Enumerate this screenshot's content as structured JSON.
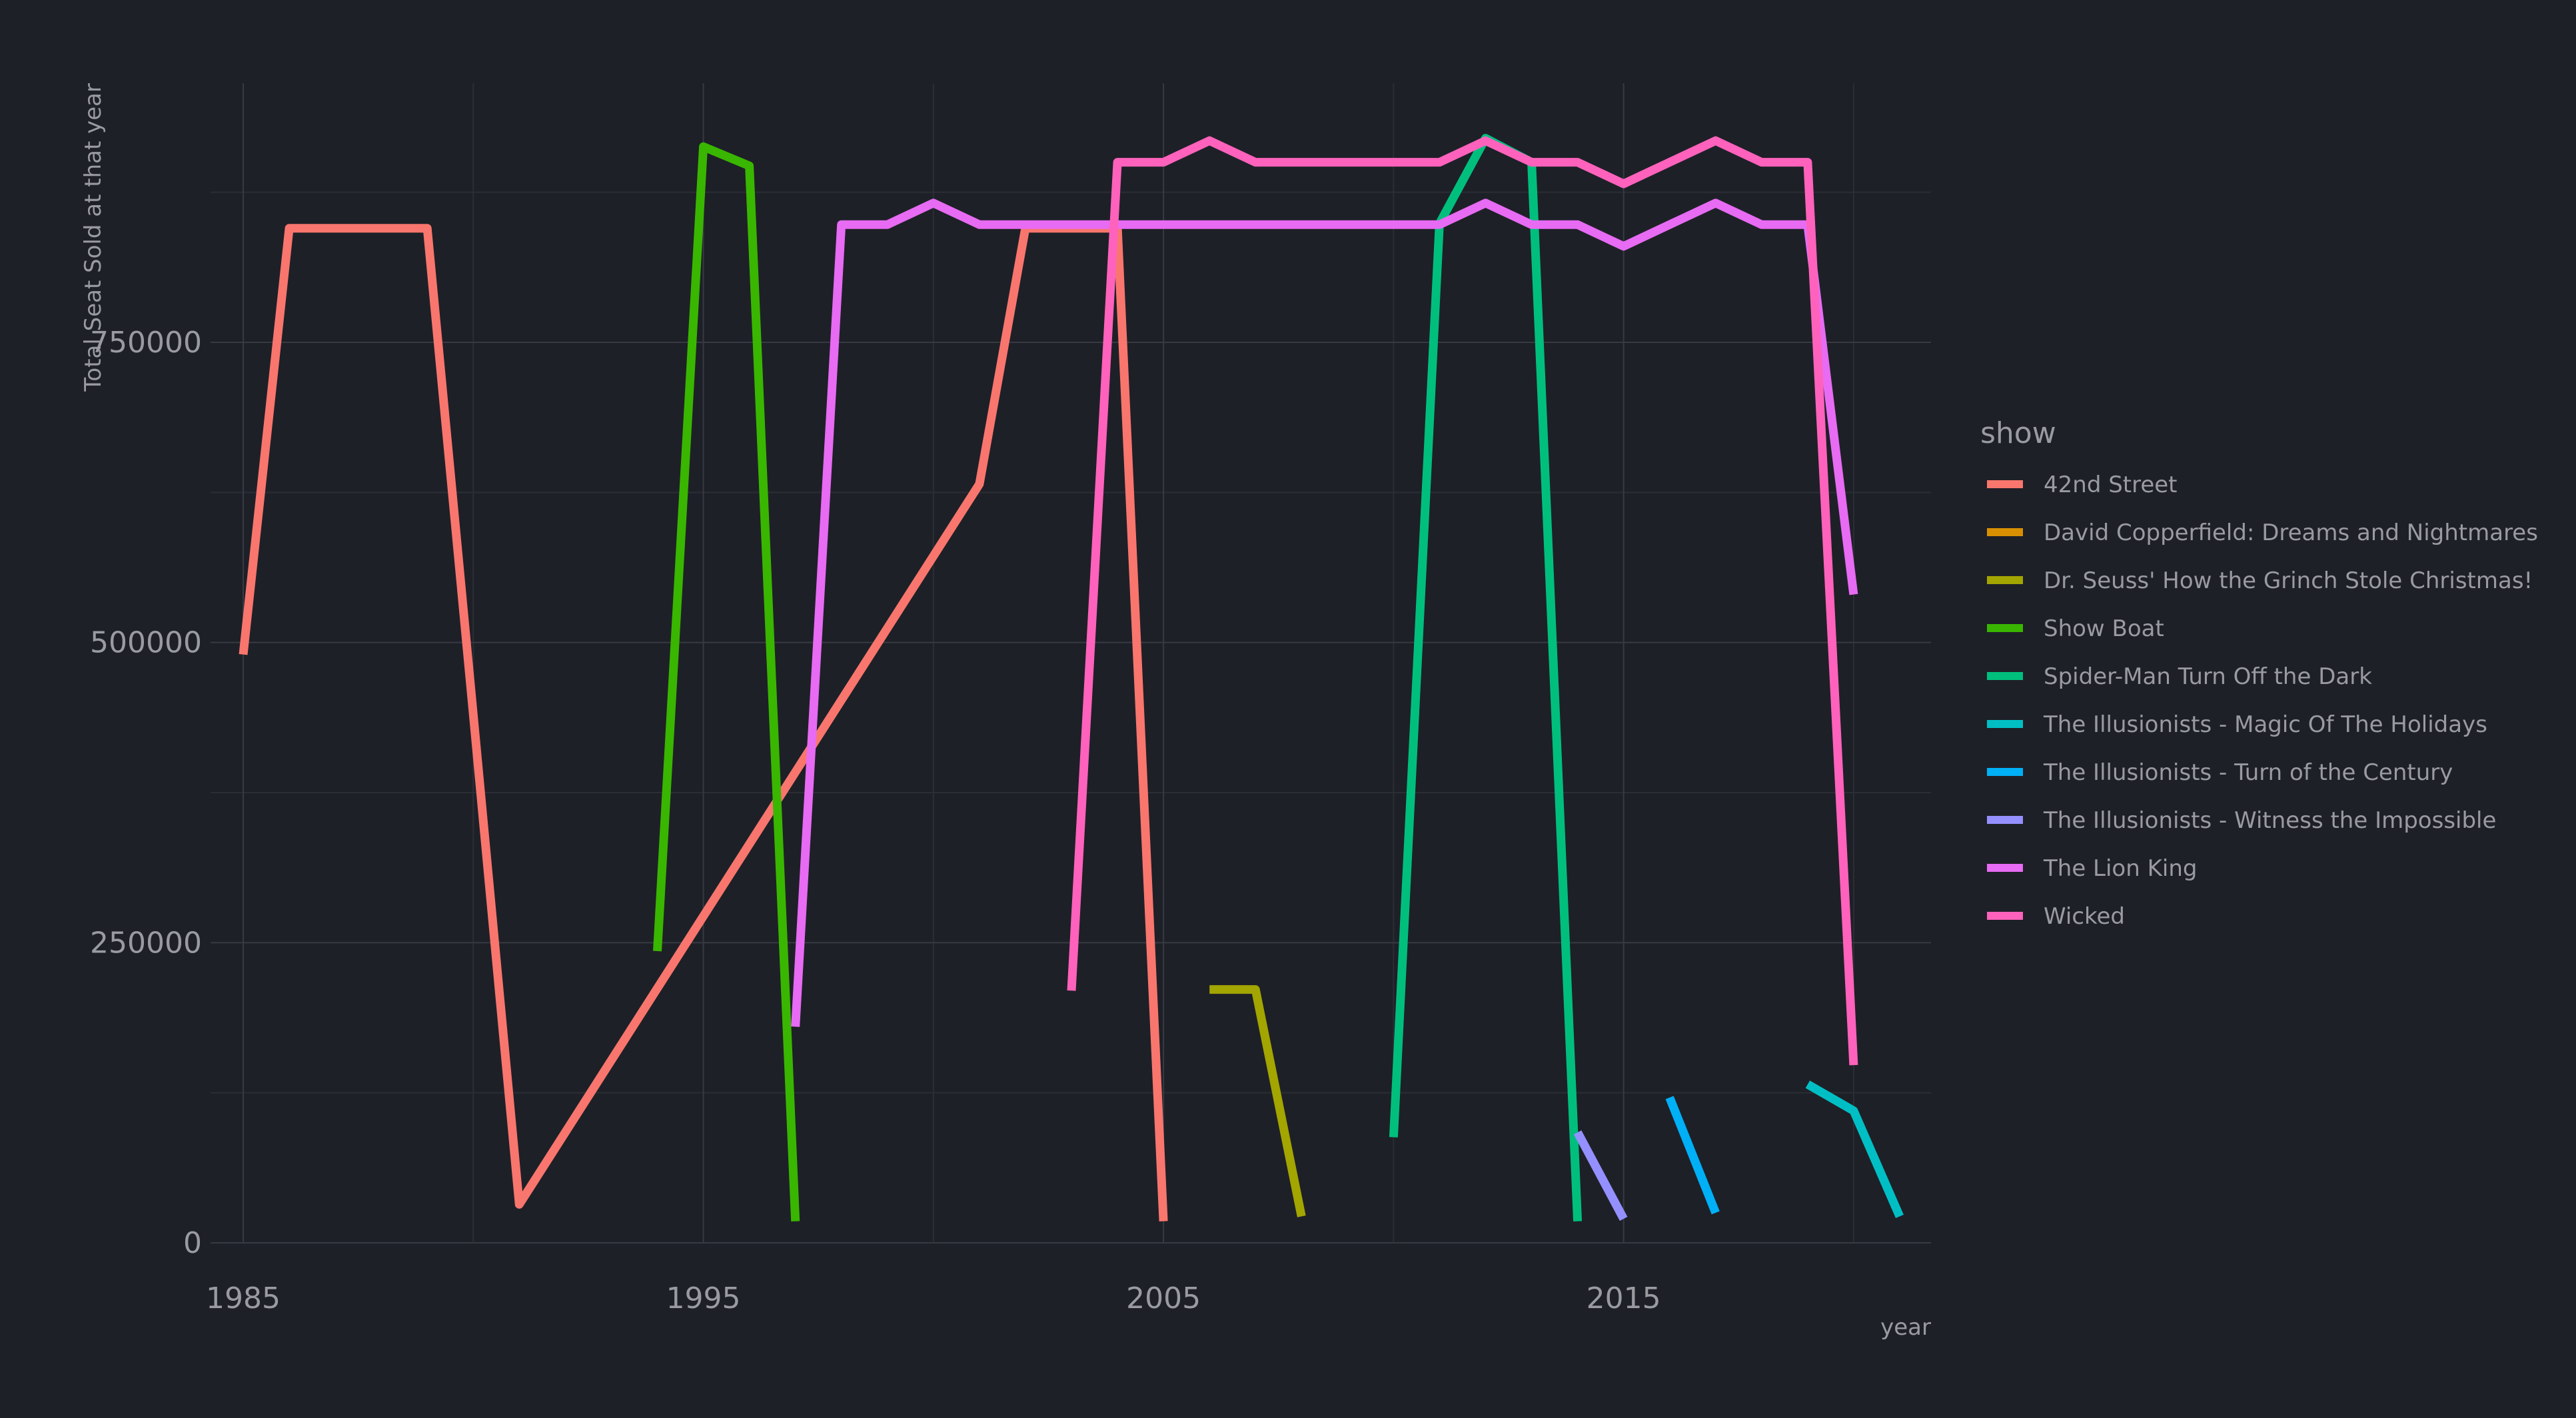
{
  "chart_data": {
    "type": "line",
    "title": "",
    "xlabel": "year",
    "ylabel": "Total Seat Sold at that year",
    "xlim": [
      1985,
      2021
    ],
    "ylim": [
      0,
      925000
    ],
    "x_ticks": [
      1985,
      1995,
      2005,
      2015
    ],
    "y_ticks": [
      0,
      250000,
      500000,
      750000
    ],
    "grid": true,
    "legend": {
      "title": "show",
      "position": "right"
    },
    "series": [
      {
        "name": "42nd Street",
        "color": "#f8766d",
        "points": [
          [
            1985,
            490000
          ],
          [
            1986,
            845000
          ],
          [
            1987,
            845000
          ],
          [
            1988,
            845000
          ],
          [
            1989,
            845000
          ],
          [
            1990,
            440000
          ],
          [
            1991,
            32000
          ],
          [
            2001,
            632000
          ],
          [
            2002,
            845000
          ],
          [
            2003,
            845000
          ],
          [
            2004,
            845000
          ],
          [
            2005,
            18000
          ]
        ]
      },
      {
        "name": "David Copperfield: Dreams and Nightmares",
        "color": "#d89000",
        "points": []
      },
      {
        "name": "Dr. Seuss' How the Grinch Stole Christmas!",
        "color": "#a3a500",
        "points": [
          [
            2006,
            211000
          ],
          [
            2007,
            211000
          ],
          [
            2008,
            22000
          ]
        ]
      },
      {
        "name": "Show Boat",
        "color": "#39b600",
        "points": [
          [
            1994,
            243000
          ],
          [
            1995,
            913000
          ],
          [
            1996,
            897000
          ],
          [
            1997,
            18000
          ]
        ]
      },
      {
        "name": "Spider-Man Turn Off the Dark",
        "color": "#00bf7d",
        "points": [
          [
            2010,
            88000
          ],
          [
            2011,
            849000
          ],
          [
            2012,
            920000
          ],
          [
            2013,
            900000
          ],
          [
            2014,
            18000
          ]
        ]
      },
      {
        "name": "The Illusionists - Magic Of The Holidays",
        "color": "#00bfc4",
        "points": [
          [
            2019,
            132000
          ],
          [
            2020,
            110000
          ],
          [
            2021,
            22000
          ]
        ]
      },
      {
        "name": "The Illusionists - Turn of the Century",
        "color": "#00b0f6",
        "points": [
          [
            2016,
            121000
          ],
          [
            2017,
            25000
          ]
        ]
      },
      {
        "name": "The Illusionists - Witness the Impossible",
        "color": "#9590ff",
        "points": [
          [
            2014,
            92000
          ],
          [
            2015,
            20000
          ]
        ]
      },
      {
        "name": "The Lion King",
        "color": "#e76bf3",
        "points": [
          [
            1997,
            180000
          ],
          [
            1998,
            848000
          ],
          [
            1999,
            848000
          ],
          [
            2000,
            866000
          ],
          [
            2001,
            848000
          ],
          [
            2002,
            848000
          ],
          [
            2003,
            848000
          ],
          [
            2004,
            848000
          ],
          [
            2005,
            848000
          ],
          [
            2006,
            848000
          ],
          [
            2007,
            848000
          ],
          [
            2008,
            848000
          ],
          [
            2009,
            848000
          ],
          [
            2010,
            848000
          ],
          [
            2011,
            848000
          ],
          [
            2012,
            866000
          ],
          [
            2013,
            848000
          ],
          [
            2014,
            848000
          ],
          [
            2015,
            830000
          ],
          [
            2016,
            848000
          ],
          [
            2017,
            866000
          ],
          [
            2018,
            848000
          ],
          [
            2019,
            848000
          ],
          [
            2020,
            540000
          ]
        ]
      },
      {
        "name": "Wicked",
        "color": "#ff62bc",
        "points": [
          [
            2003,
            210000
          ],
          [
            2004,
            900000
          ],
          [
            2005,
            900000
          ],
          [
            2006,
            918000
          ],
          [
            2007,
            900000
          ],
          [
            2008,
            900000
          ],
          [
            2009,
            900000
          ],
          [
            2010,
            900000
          ],
          [
            2011,
            900000
          ],
          [
            2012,
            918000
          ],
          [
            2013,
            900000
          ],
          [
            2014,
            900000
          ],
          [
            2015,
            882000
          ],
          [
            2016,
            900000
          ],
          [
            2017,
            918000
          ],
          [
            2018,
            900000
          ],
          [
            2019,
            900000
          ],
          [
            2020,
            148000
          ]
        ]
      }
    ]
  }
}
